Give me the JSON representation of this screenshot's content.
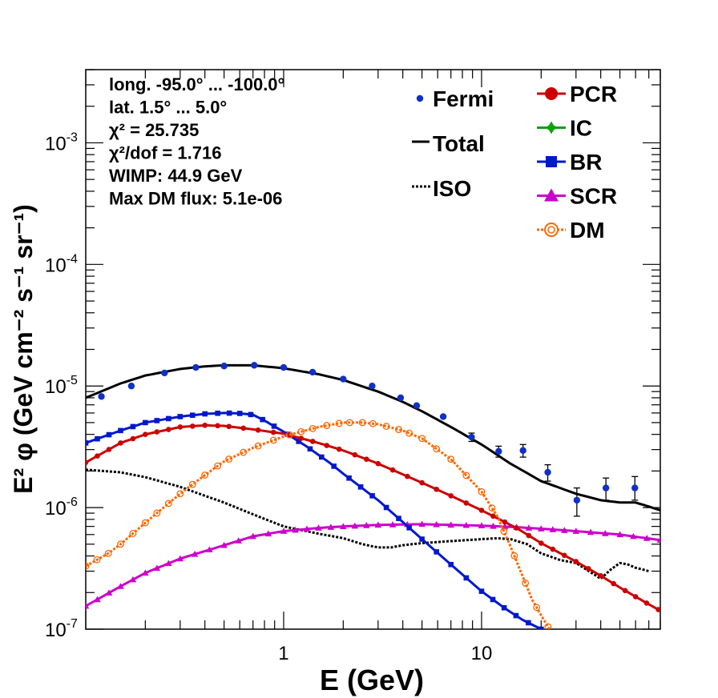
{
  "chart_data": {
    "type": "scatter",
    "xscale": "log",
    "yscale": "log",
    "xlim": [
      0.1,
      80
    ],
    "ylim": [
      1e-07,
      0.004
    ],
    "xlabel": "E (GeV)",
    "ylabel": "E² φ (GeV cm⁻² s⁻¹ sr⁻¹)",
    "x_tick_labels": [
      {
        "value": 1,
        "label": "1"
      },
      {
        "value": 10,
        "label": "10"
      }
    ],
    "y_tick_labels": [
      {
        "exp": -7,
        "base": "10",
        "sup": "-7"
      },
      {
        "exp": -6,
        "base": "10",
        "sup": "-6"
      },
      {
        "exp": -5,
        "base": "10",
        "sup": "-5"
      },
      {
        "exp": -4,
        "base": "10",
        "sup": "-4"
      },
      {
        "exp": -3,
        "base": "10",
        "sup": "-3"
      }
    ],
    "info_lines": [
      "long. -95.0° ... -100.0°",
      "lat. 1.5° ... 5.0°",
      "χ² = 25.735",
      "χ²/dof = 1.716",
      "WIMP: 44.9 GeV",
      "Max DM flux: 5.1e-06"
    ],
    "legend": [
      {
        "key": "fermi",
        "label": "Fermi",
        "color": "#1030c8",
        "style": "point"
      },
      {
        "key": "total",
        "label": "Total",
        "color": "#000000",
        "style": "line"
      },
      {
        "key": "iso",
        "label": "ISO",
        "color": "#000000",
        "style": "dotted"
      },
      {
        "key": "pcr",
        "label": "PCR",
        "color": "#cc0000",
        "style": "circle-line"
      },
      {
        "key": "ic",
        "label": "IC",
        "color": "#11a011",
        "style": "star-line"
      },
      {
        "key": "br",
        "label": "BR",
        "color": "#0018cc",
        "style": "square-line"
      },
      {
        "key": "scr",
        "label": "SCR",
        "color": "#cc00cc",
        "style": "triangle-line"
      },
      {
        "key": "dm",
        "label": "DM",
        "color": "#ff6600",
        "style": "open-circle-dotted"
      }
    ],
    "fermi": {
      "x": [
        0.12,
        0.17,
        0.25,
        0.36,
        0.5,
        0.71,
        1.0,
        1.4,
        2.0,
        2.8,
        3.9,
        4.7,
        6.4,
        8.9,
        12.2,
        16.2,
        21.6,
        30.3,
        42.5,
        59.5,
        83.2
      ],
      "y": [
        8.2e-06,
        1e-05,
        1.28e-05,
        1.42e-05,
        1.46e-05,
        1.48e-05,
        1.42e-05,
        1.3e-05,
        1.14e-05,
        1e-05,
        8e-06,
        6.9e-06,
        5.6e-06,
        3.8e-06,
        2.9e-06,
        2.95e-06,
        1.95e-06,
        1.15e-06,
        1.45e-06,
        1.45e-06,
        2.3e-06
      ],
      "ylo": [
        null,
        null,
        null,
        null,
        null,
        null,
        null,
        null,
        null,
        null,
        null,
        null,
        null,
        3.5e-06,
        2.6e-06,
        2.6e-06,
        1.65e-06,
        8.5e-07,
        1.15e-06,
        1.15e-06,
        1.7e-06
      ],
      "yhi": [
        null,
        null,
        null,
        null,
        null,
        null,
        null,
        null,
        null,
        null,
        null,
        null,
        null,
        4.1e-06,
        3.2e-06,
        3.3e-06,
        2.25e-06,
        1.45e-06,
        1.75e-06,
        1.8e-06,
        2.95e-06
      ]
    },
    "series": [
      {
        "key": "total",
        "x": [
          0.1,
          0.15,
          0.2,
          0.3,
          0.4,
          0.5,
          0.7,
          1.0,
          1.5,
          2.0,
          3.0,
          4.0,
          5.0,
          7.0,
          10,
          14,
          20,
          30,
          40,
          50,
          60,
          70,
          80
        ],
        "y": [
          8e-06,
          1.05e-05,
          1.22e-05,
          1.38e-05,
          1.45e-05,
          1.48e-05,
          1.48e-05,
          1.4e-05,
          1.25e-05,
          1.12e-05,
          9e-06,
          7.4e-06,
          6.2e-06,
          4.6e-06,
          3.3e-06,
          2.3e-06,
          1.65e-06,
          1.3e-06,
          1.15e-06,
          1.1e-06,
          1.1e-06,
          1.02e-06,
          9.5e-07
        ]
      },
      {
        "key": "iso",
        "x": [
          0.1,
          0.15,
          0.2,
          0.3,
          0.4,
          0.5,
          0.7,
          1.0,
          1.5,
          2.0,
          2.5,
          3.0,
          3.5,
          4.0,
          5.0,
          7.0,
          10,
          12,
          14,
          17,
          20,
          25,
          30,
          40,
          45,
          50,
          55,
          60,
          65,
          70
        ],
        "y": [
          2.05e-06,
          1.95e-06,
          1.78e-06,
          1.48e-06,
          1.25e-06,
          1.1e-06,
          8.8e-07,
          7e-07,
          6.1e-07,
          5.6e-07,
          5e-07,
          4.7e-07,
          4.7e-07,
          4.9e-07,
          5.1e-07,
          5.3e-07,
          5.5e-07,
          5.6e-07,
          5.5e-07,
          5e-07,
          4.2e-07,
          3.7e-07,
          3.5e-07,
          2.6e-07,
          3.1e-07,
          3.5e-07,
          3.4e-07,
          3.2e-07,
          3.1e-07,
          3e-07
        ]
      },
      {
        "key": "pcr",
        "x": [
          0.1,
          0.15,
          0.2,
          0.3,
          0.4,
          0.5,
          0.7,
          1.0,
          1.5,
          2.0,
          3.0,
          5.0,
          7.0,
          10,
          15,
          20,
          30,
          40,
          50,
          60,
          70,
          80
        ],
        "y": [
          2.35e-06,
          3.4e-06,
          4e-06,
          4.6e-06,
          4.75e-06,
          4.7e-06,
          4.4e-06,
          4.05e-06,
          3.4e-06,
          2.95e-06,
          2.3e-06,
          1.6e-06,
          1.25e-06,
          9.5e-07,
          6.8e-07,
          5.1e-07,
          3.6e-07,
          2.75e-07,
          2.2e-07,
          1.85e-07,
          1.6e-07,
          1.42e-07
        ]
      },
      {
        "key": "br",
        "x": [
          0.1,
          0.15,
          0.2,
          0.3,
          0.4,
          0.5,
          0.6,
          0.7,
          0.8,
          1.0,
          1.3,
          1.7,
          2.0,
          3.0,
          4.0,
          5.0,
          7.0,
          10,
          13,
          16,
          20,
          23
        ],
        "y": [
          3.4e-06,
          4.3e-06,
          5e-06,
          5.6e-06,
          5.9e-06,
          6e-06,
          5.95e-06,
          5.8e-06,
          5.2e-06,
          4.2e-06,
          3.2e-06,
          2.35e-06,
          1.9e-06,
          1.15e-06,
          7.6e-07,
          5.5e-07,
          3.4e-07,
          2.05e-07,
          1.5e-07,
          1.2e-07,
          1e-07,
          9e-08
        ]
      },
      {
        "key": "scr",
        "x": [
          0.1,
          0.15,
          0.2,
          0.3,
          0.5,
          0.7,
          1.0,
          1.5,
          2.0,
          3.0,
          5.0,
          7.0,
          10,
          15,
          20,
          30,
          50,
          80
        ],
        "y": [
          1.55e-07,
          2.25e-07,
          2.9e-07,
          3.8e-07,
          4.9e-07,
          5.8e-07,
          6.4e-07,
          6.8e-07,
          7e-07,
          7.2e-07,
          7.3e-07,
          7.2e-07,
          7.1e-07,
          6.9e-07,
          6.7e-07,
          6.4e-07,
          6e-07,
          5.4e-07
        ]
      },
      {
        "key": "dm",
        "x": [
          0.1,
          0.13,
          0.15,
          0.2,
          0.3,
          0.4,
          0.5,
          0.7,
          1.0,
          1.5,
          2.0,
          2.5,
          3.0,
          4.0,
          5.0,
          7.0,
          10,
          12,
          14,
          16,
          18,
          20,
          22
        ],
        "y": [
          3.3e-07,
          4.2e-07,
          5e-07,
          7.5e-07,
          1.3e-06,
          1.85e-06,
          2.4e-06,
          3.1e-06,
          3.85e-06,
          4.6e-06,
          5e-06,
          5e-06,
          4.85e-06,
          4.3e-06,
          3.7e-06,
          2.5e-06,
          1.35e-06,
          8.5e-07,
          4.8e-07,
          2.8e-07,
          1.75e-07,
          1.3e-07,
          1e-07
        ]
      }
    ]
  }
}
